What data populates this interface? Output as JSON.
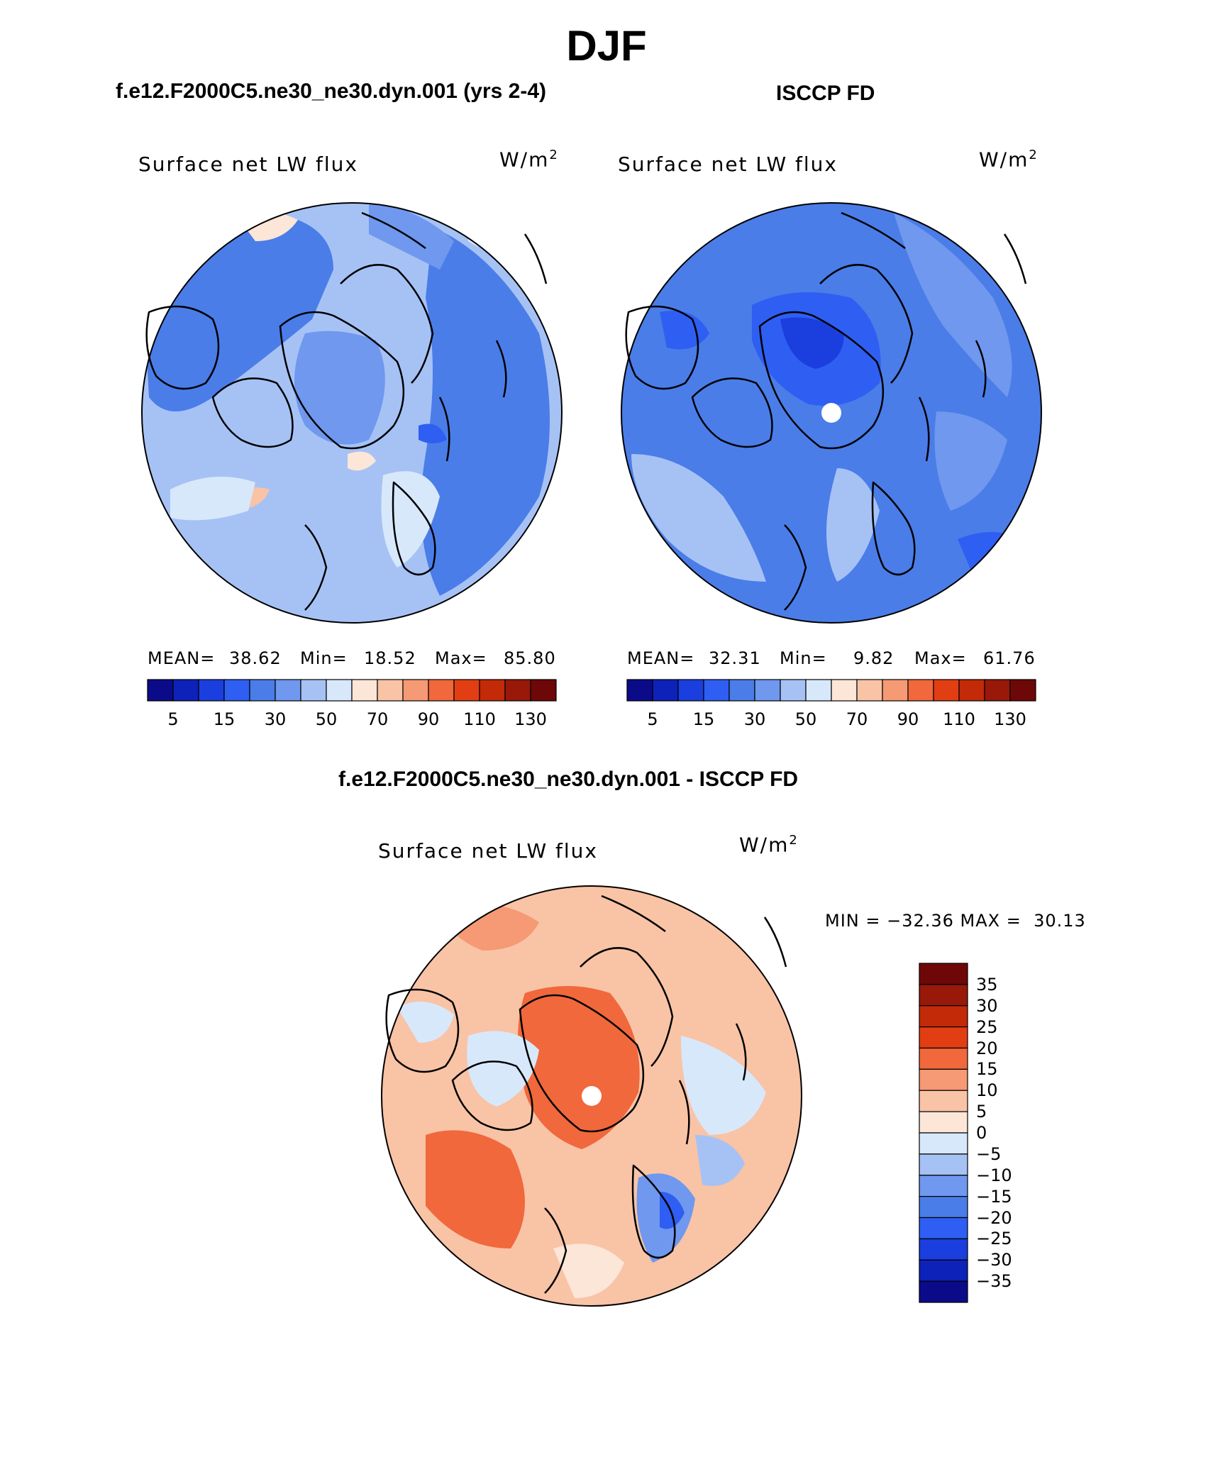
{
  "page": {
    "title": "DJF"
  },
  "panels": [
    {
      "title": "f.e12.F2000C5.ne30_ne30.dyn.001 (yrs 2-4)",
      "label": "Surface net LW flux",
      "units": "W/m",
      "units_sup": "2",
      "stats": {
        "mean_label": "MEAN=",
        "mean": "38.62",
        "min_label": "Min=",
        "min": "18.52",
        "max_label": "Max=",
        "max": "85.80"
      }
    },
    {
      "title": "ISCCP FD",
      "label": "Surface net LW flux",
      "units": "W/m",
      "units_sup": "2",
      "stats": {
        "mean_label": "MEAN=",
        "mean": "32.31",
        "min_label": "Min=",
        "min": "9.82",
        "max_label": "Max=",
        "max": "61.76"
      }
    },
    {
      "title": "f.e12.F2000C5.ne30_ne30.dyn.001 - ISCCP FD",
      "label": "Surface net LW flux",
      "units": "W/m",
      "units_sup": "2",
      "stats": {
        "minmax": "MIN = −32.36 MAX =  30.13"
      }
    }
  ],
  "chart_data": [
    {
      "type": "heatmap",
      "title": "f.e12.F2000C5.ne30_ne30.dyn.001 (yrs 2-4)",
      "variable": "Surface net LW flux",
      "units": "W/m2",
      "projection": "north polar stereographic",
      "mean": 38.62,
      "min": 18.52,
      "max": 85.8,
      "colorbar": {
        "orientation": "horizontal",
        "tick_labels": [
          "5",
          "15",
          "30",
          "50",
          "70",
          "90",
          "110",
          "130"
        ],
        "colors": [
          "#0b0b8a",
          "#0d22b8",
          "#1a3fde",
          "#2e5ff2",
          "#4a7de8",
          "#6f98ee",
          "#a6c2f5",
          "#d8e8fb",
          "#fbe6d8",
          "#f9c3a6",
          "#f59a74",
          "#f0683c",
          "#e23e13",
          "#c22a08",
          "#98180a",
          "#6e0808"
        ]
      }
    },
    {
      "type": "heatmap",
      "title": "ISCCP FD",
      "variable": "Surface net LW flux",
      "units": "W/m2",
      "projection": "north polar stereographic",
      "mean": 32.31,
      "min": 9.82,
      "max": 61.76,
      "colorbar": {
        "orientation": "horizontal",
        "tick_labels": [
          "5",
          "15",
          "30",
          "50",
          "70",
          "90",
          "110",
          "130"
        ],
        "colors": [
          "#0b0b8a",
          "#0d22b8",
          "#1a3fde",
          "#2e5ff2",
          "#4a7de8",
          "#6f98ee",
          "#a6c2f5",
          "#d8e8fb",
          "#fbe6d8",
          "#f9c3a6",
          "#f59a74",
          "#f0683c",
          "#e23e13",
          "#c22a08",
          "#98180a",
          "#6e0808"
        ]
      }
    },
    {
      "type": "heatmap",
      "title": "f.e12.F2000C5.ne30_ne30.dyn.001 - ISCCP FD",
      "variable": "Surface net LW flux",
      "units": "W/m2",
      "projection": "north polar stereographic",
      "min": -32.36,
      "max": 30.13,
      "colorbar": {
        "orientation": "vertical",
        "tick_labels": [
          "35",
          "30",
          "25",
          "20",
          "15",
          "10",
          "5",
          "0",
          "−5",
          "−10",
          "−15",
          "−20",
          "−25",
          "−30",
          "−35"
        ],
        "colors": [
          "#6e0808",
          "#98180a",
          "#c22a08",
          "#e23e13",
          "#f0683c",
          "#f59a74",
          "#f9c3a6",
          "#fbe6d8",
          "#d8e8fb",
          "#a6c2f5",
          "#6f98ee",
          "#4a7de8",
          "#2e5ff2",
          "#1a3fde",
          "#0d22b8",
          "#0b0b8a"
        ]
      }
    }
  ]
}
